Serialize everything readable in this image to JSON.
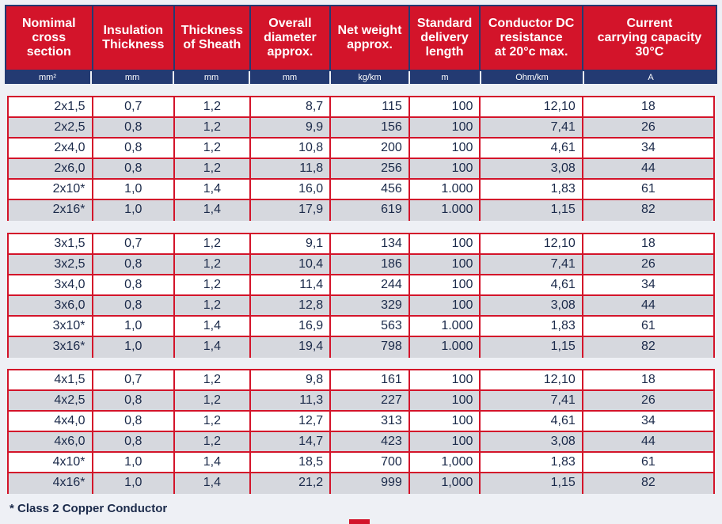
{
  "columns": [
    {
      "header": "Nomimal\ncross\nsection",
      "unit": "mm²",
      "align": "right"
    },
    {
      "header": "Insulation\nThickness",
      "unit": "mm",
      "align": "center"
    },
    {
      "header": "Thickness\nof Sheath",
      "unit": "mm",
      "align": "center"
    },
    {
      "header": "Overall\ndiameter\napprox.",
      "unit": "mm",
      "align": "right"
    },
    {
      "header": "Net weight\napprox.",
      "unit": "kg/km",
      "align": "right"
    },
    {
      "header": "Standard\ndelivery\nlength",
      "unit": "m",
      "align": "right"
    },
    {
      "header": "Conductor DC\nresistance\nat 20°c max.",
      "unit": "Ohm/km",
      "align": "right"
    },
    {
      "header": "Current\ncarrying capacity\n30°C",
      "unit": "A",
      "align": "center"
    }
  ],
  "groups": [
    [
      [
        "2x1,5",
        "0,7",
        "1,2",
        "8,7",
        "115",
        "100",
        "12,10",
        "18"
      ],
      [
        "2x2,5",
        "0,8",
        "1,2",
        "9,9",
        "156",
        "100",
        "7,41",
        "26"
      ],
      [
        "2x4,0",
        "0,8",
        "1,2",
        "10,8",
        "200",
        "100",
        "4,61",
        "34"
      ],
      [
        "2x6,0",
        "0,8",
        "1,2",
        "11,8",
        "256",
        "100",
        "3,08",
        "44"
      ],
      [
        "2x10*",
        "1,0",
        "1,4",
        "16,0",
        "456",
        "1.000",
        "1,83",
        "61"
      ],
      [
        "2x16*",
        "1,0",
        "1,4",
        "17,9",
        "619",
        "1.000",
        "1,15",
        "82"
      ]
    ],
    [
      [
        "3x1,5",
        "0,7",
        "1,2",
        "9,1",
        "134",
        "100",
        "12,10",
        "18"
      ],
      [
        "3x2,5",
        "0,8",
        "1,2",
        "10,4",
        "186",
        "100",
        "7,41",
        "26"
      ],
      [
        "3x4,0",
        "0,8",
        "1,2",
        "11,4",
        "244",
        "100",
        "4,61",
        "34"
      ],
      [
        "3x6,0",
        "0,8",
        "1,2",
        "12,8",
        "329",
        "100",
        "3,08",
        "44"
      ],
      [
        "3x10*",
        "1,0",
        "1,4",
        "16,9",
        "563",
        "1.000",
        "1,83",
        "61"
      ],
      [
        "3x16*",
        "1,0",
        "1,4",
        "19,4",
        "798",
        "1.000",
        "1,15",
        "82"
      ]
    ],
    [
      [
        "4x1,5",
        "0,7",
        "1,2",
        "9,8",
        "161",
        "100",
        "12,10",
        "18"
      ],
      [
        "4x2,5",
        "0,8",
        "1,2",
        "11,3",
        "227",
        "100",
        "7,41",
        "26"
      ],
      [
        "4x4,0",
        "0,8",
        "1,2",
        "12,7",
        "313",
        "100",
        "4,61",
        "34"
      ],
      [
        "4x6,0",
        "0,8",
        "1,2",
        "14,7",
        "423",
        "100",
        "3,08",
        "44"
      ],
      [
        "4x10*",
        "1,0",
        "1,4",
        "18,5",
        "700",
        "1,000",
        "1,83",
        "61"
      ],
      [
        "4x16*",
        "1,0",
        "1,4",
        "21,2",
        "999",
        "1,000",
        "1,15",
        "82"
      ]
    ]
  ],
  "footnote": "* Class 2 Copper Conductor",
  "colors": {
    "accent": "#d3142a",
    "navy": "#233a72",
    "row_alt": "#d6d8de"
  }
}
